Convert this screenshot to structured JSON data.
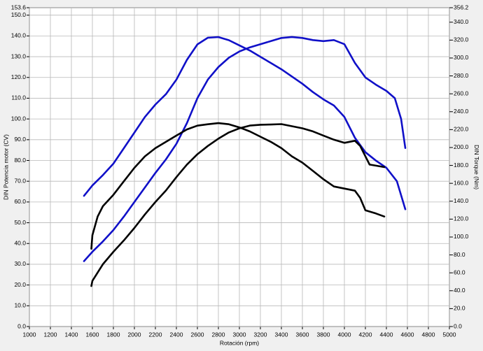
{
  "chart_data": {
    "type": "line",
    "x_label": "Rotación (rpm)",
    "y_label": "DIN Potencia motor (CV)",
    "y2_label": "DIN Torque (Nm)",
    "xlim": [
      1000,
      5000
    ],
    "xticks": [
      1000,
      1200,
      1400,
      1600,
      1800,
      2000,
      2200,
      2400,
      2600,
      2800,
      3000,
      3200,
      3400,
      3600,
      3800,
      4000,
      4200,
      4400,
      4600,
      4800,
      5000
    ],
    "ylim": [
      0,
      153.6
    ],
    "yticks": [
      {
        "value": 0,
        "label": "0.0"
      },
      {
        "value": 10,
        "label": "10.0"
      },
      {
        "value": 20,
        "label": "20.0"
      },
      {
        "value": 30,
        "label": "30.0"
      },
      {
        "value": 40,
        "label": "40.0"
      },
      {
        "value": 50,
        "label": "50.0"
      },
      {
        "value": 60,
        "label": "60.0"
      },
      {
        "value": 70,
        "label": "70.0"
      },
      {
        "value": 80,
        "label": "80.0"
      },
      {
        "value": 90,
        "label": "90.0"
      },
      {
        "value": 100,
        "label": "100.0"
      },
      {
        "value": 110,
        "label": "110.0"
      },
      {
        "value": 120,
        "label": "120.0"
      },
      {
        "value": 130,
        "label": "130.0"
      },
      {
        "value": 140,
        "label": "140.0"
      },
      {
        "value": 150,
        "label": "150.0"
      },
      153.6
    ],
    "y2lim": [
      0,
      356.2
    ],
    "y2ticks": [
      {
        "value": 0,
        "label": "0.0"
      },
      {
        "value": 20,
        "label": "20.0"
      },
      {
        "value": 40,
        "label": "40.0"
      },
      {
        "value": 60,
        "label": "60.0"
      },
      {
        "value": 80,
        "label": "80.0"
      },
      {
        "value": 100,
        "label": "100.0"
      },
      {
        "value": 120,
        "label": "120.0"
      },
      {
        "value": 140,
        "label": "140.0"
      },
      {
        "value": 160,
        "label": "160.0"
      },
      {
        "value": 180,
        "label": "180.0"
      },
      {
        "value": 200,
        "label": "200.0"
      },
      {
        "value": 220,
        "label": "220.0"
      },
      {
        "value": 240,
        "label": "240.0"
      },
      {
        "value": 260,
        "label": "260.0"
      },
      {
        "value": 280,
        "label": "280.0"
      },
      {
        "value": 300,
        "label": "300.0"
      },
      {
        "value": 320,
        "label": "320.0"
      },
      {
        "value": 340,
        "label": "340.0"
      },
      356.2
    ],
    "grid": true,
    "series": [
      {
        "color": "#1010c8",
        "axis": "y",
        "x": [
          1520,
          1600,
          1700,
          1800,
          1900,
          2000,
          2100,
          2200,
          2300,
          2400,
          2500,
          2600,
          2700,
          2800,
          2900,
          3000,
          3100,
          3200,
          3300,
          3400,
          3500,
          3600,
          3700,
          3800,
          3900,
          4000,
          4100,
          4200,
          4300,
          4400,
          4480,
          4540,
          4580
        ],
        "values": [
          31.5,
          36,
          41,
          46.5,
          53,
          60,
          67,
          74,
          80.5,
          88,
          98,
          110,
          119,
          125,
          129.5,
          132.5,
          134.5,
          136,
          137.5,
          139,
          139.5,
          139,
          138,
          137.5,
          138,
          136,
          127,
          120,
          116.5,
          113.5,
          110,
          100,
          86
        ]
      },
      {
        "color": "#1010c8",
        "axis": "y2",
        "x": [
          1520,
          1600,
          1700,
          1800,
          1900,
          2000,
          2100,
          2200,
          2300,
          2400,
          2500,
          2600,
          2700,
          2800,
          2900,
          3000,
          3100,
          3200,
          3300,
          3400,
          3500,
          3600,
          3700,
          3800,
          3900,
          4000,
          4100,
          4200,
          4300,
          4400,
          4500,
          4580
        ],
        "values": [
          146,
          157.6,
          169.2,
          182,
          199.3,
          216.7,
          234.1,
          248,
          259.6,
          275.8,
          297.9,
          315.2,
          322.7,
          323.4,
          319.9,
          314.1,
          308.3,
          301.3,
          294.4,
          287.4,
          279.3,
          271.2,
          261.9,
          253.8,
          246.9,
          234.1,
          210.9,
          194.7,
          185.4,
          177.3,
          162.3,
          131
        ]
      },
      {
        "color": "#000000",
        "axis": "y",
        "x": [
          1590,
          1600,
          1700,
          1800,
          1900,
          2000,
          2100,
          2200,
          2300,
          2400,
          2500,
          2600,
          2700,
          2800,
          2900,
          3000,
          3100,
          3200,
          3300,
          3400,
          3500,
          3600,
          3700,
          3800,
          3900,
          4000,
          4100,
          4150,
          4200,
          4240,
          4300,
          4380
        ],
        "values": [
          19.5,
          22,
          30,
          36,
          41.5,
          47.5,
          54,
          60,
          65.5,
          72,
          78,
          83,
          87,
          90.5,
          93.5,
          95.5,
          96.8,
          97.2,
          97.3,
          97.5,
          96.5,
          95.5,
          94,
          92,
          90,
          88.5,
          89.5,
          87,
          82,
          78,
          77.5,
          76.8
        ]
      },
      {
        "color": "#000000",
        "axis": "y2",
        "x": [
          1590,
          1600,
          1650,
          1700,
          1800,
          1900,
          2000,
          2100,
          2200,
          2300,
          2400,
          2500,
          2600,
          2700,
          2800,
          2900,
          3000,
          3100,
          3200,
          3300,
          3400,
          3500,
          3600,
          3700,
          3800,
          3900,
          4000,
          4100,
          4150,
          4200,
          4300,
          4380
        ],
        "values": [
          86.9,
          102,
          122.9,
          134.4,
          147.2,
          162.3,
          177.3,
          190.1,
          199.3,
          206.3,
          213.3,
          220.2,
          224.4,
          226,
          227.2,
          226,
          222.5,
          217.9,
          212.1,
          206.3,
          199.3,
          190.1,
          183.1,
          173.9,
          164.6,
          156.5,
          154.1,
          151.8,
          143.7,
          129.8,
          126.3,
          122.9
        ]
      }
    ]
  }
}
